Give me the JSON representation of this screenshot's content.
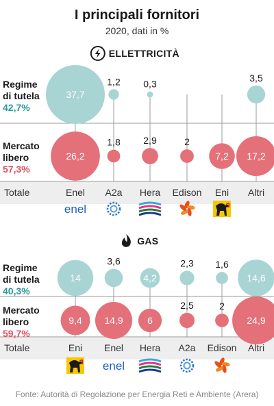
{
  "colors": {
    "tutela": "#a8d4d4",
    "tutela_text": "#2a9a94",
    "libero": "#e4707a",
    "libero_text": "#e0505f",
    "band": "#eeeeee",
    "axis": "#9a9a9a"
  },
  "chart_data": {
    "type": "bubble-matrix",
    "title": "I principali fornitori",
    "subtitle": "2020, dati in %",
    "total_label": "Totale",
    "source": "Fonte: Autorità di Regolazione per Energia Reti e Ambiente (Arera)",
    "panels": [
      {
        "name": "ELLETTRICITÀ",
        "icon": "lightning-bolt-icon",
        "categories": [
          "Enel",
          "A2a",
          "Hera",
          "Edison",
          "Eni",
          "Altri"
        ],
        "logos": [
          "enel-logo",
          "a2a-logo",
          "hera-logo",
          "edison-logo",
          "eni-logo",
          ""
        ],
        "series": [
          {
            "name": "Regime di tutela",
            "name_lines": [
              "Regime",
              "di tutela"
            ],
            "total": "42,7%",
            "values": [
              37.7,
              1.2,
              0.3,
              null,
              null,
              3.5
            ],
            "labels": [
              "37,7",
              "1,2",
              "0,3",
              "",
              "",
              "3,5"
            ]
          },
          {
            "name": "Mercato libero",
            "name_lines": [
              "Mercato",
              "libero"
            ],
            "total": "57,3%",
            "values": [
              26.2,
              1.8,
              2.9,
              2,
              7.2,
              17.2
            ],
            "labels": [
              "26,2",
              "1,8",
              "2,9",
              "2",
              "7,2",
              "17,2"
            ]
          }
        ]
      },
      {
        "name": "GAS",
        "icon": "flame-icon",
        "categories": [
          "Eni",
          "Enel",
          "Hera",
          "A2a",
          "Edison",
          "Altri"
        ],
        "logos": [
          "eni-logo",
          "enel-logo",
          "hera-logo",
          "a2a-logo",
          "edison-logo",
          ""
        ],
        "series": [
          {
            "name": "Regime di tutela",
            "name_lines": [
              "Regime",
              "di tutela"
            ],
            "total": "40,3%",
            "values": [
              14,
              3.6,
              4.2,
              2.3,
              1.6,
              14.6
            ],
            "labels": [
              "14",
              "3,6",
              "4,2",
              "2,3",
              "1,6",
              "14,6"
            ]
          },
          {
            "name": "Mercato libero",
            "name_lines": [
              "Mercato",
              "libero"
            ],
            "total": "59,7%",
            "values": [
              9.4,
              14.9,
              6,
              2.5,
              2,
              24.9
            ],
            "labels": [
              "9,4",
              "14,9",
              "6",
              "2,5",
              "2",
              "24,9"
            ]
          }
        ]
      }
    ]
  }
}
